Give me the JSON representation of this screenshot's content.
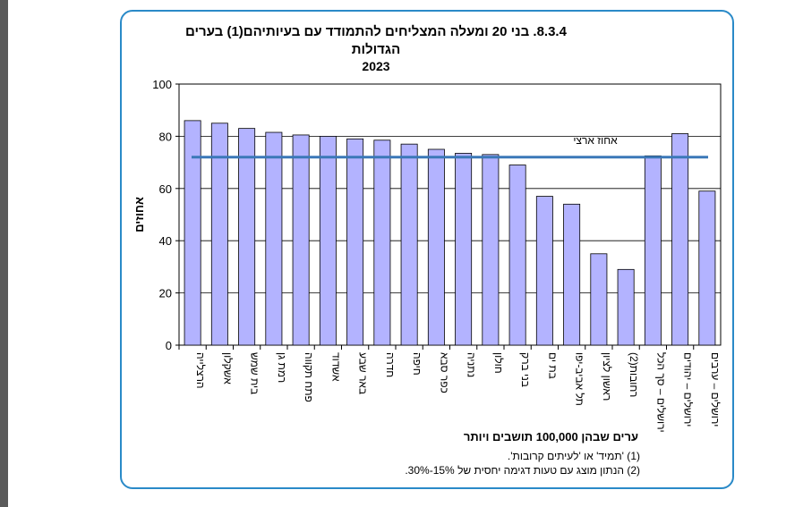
{
  "chart_data": {
    "type": "bar",
    "title_line1": "8.3.4. בני 20 ומעלה המצליחים להתמודד עם בעיותיהם(1) בערים",
    "title_line2": "הגדולות",
    "subtitle": "2023",
    "ylabel": "אחוזים",
    "xlabel": "ערים שבהן 100,000 תושבים ויותר",
    "ylim": [
      0,
      100
    ],
    "yticks": [
      0,
      20,
      40,
      60,
      80,
      100
    ],
    "grid": true,
    "categories": [
      "הרצלייה",
      "אשקלון",
      "בית שמש",
      "רמת גן",
      "פתח תקווה",
      "אשדוד",
      "באר שבע",
      "חדרה",
      "חיפה",
      "כפר סבא",
      "נתניה",
      "חולון",
      "בני ברק",
      "בת ים",
      "תל אביב-יפו",
      "ראשון לציון",
      "רחובות(2)",
      "ירושלים – סך הכל",
      "ירושלים – יהודים",
      "ירושלים – ערבים"
    ],
    "values": [
      86,
      85,
      83,
      81.5,
      80.5,
      80,
      79,
      78.5,
      77,
      75,
      73.5,
      73,
      69,
      57,
      54,
      35,
      29,
      72.5,
      81,
      59
    ],
    "reference_line": {
      "label": "אחוז ארצי",
      "value": 72
    },
    "colors": {
      "bar": "#b3b3ff",
      "bar_edge": "#000000",
      "line": "#3b78b8"
    }
  },
  "footnotes": [
    "(1) 'תמיד' או 'לעיתים קרובות'.",
    "(2) הנתון מוצג עם טעות דגימה יחסית של 15%-30%."
  ]
}
